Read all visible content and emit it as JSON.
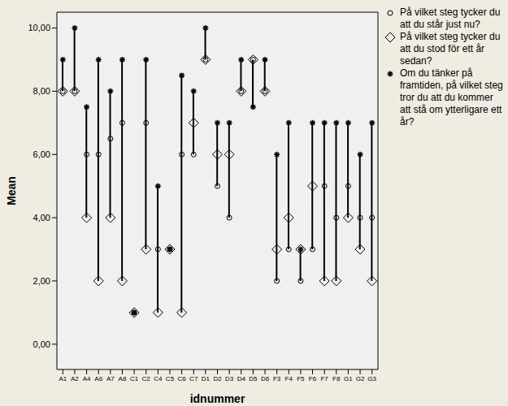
{
  "chart_data": {
    "type": "scatter",
    "x_label": "idnummer",
    "y_label": "Mean",
    "categories": [
      "A1",
      "A2",
      "A4",
      "A6",
      "A7",
      "A8",
      "C1",
      "C2",
      "C4",
      "C5",
      "C6",
      "C7",
      "D1",
      "D2",
      "D3",
      "D4",
      "D5",
      "D6",
      "F3",
      "F4",
      "F5",
      "F6",
      "F7",
      "F8",
      "G1",
      "G2",
      "G3"
    ],
    "ylim": [
      -0.8,
      10.5
    ],
    "yticks": [
      {
        "value": 0,
        "label": "0,00"
      },
      {
        "value": 2,
        "label": "2,00"
      },
      {
        "value": 4,
        "label": "4,00"
      },
      {
        "value": 6,
        "label": "6,00"
      },
      {
        "value": 8,
        "label": "8,00"
      },
      {
        "value": 10,
        "label": "10,00"
      }
    ],
    "series": [
      {
        "name": "På vilket steg tycker du att du står just nu?",
        "color": "#000000",
        "marker": "circle",
        "values": [
          8,
          8,
          6,
          6,
          6.5,
          7,
          1,
          7,
          3,
          3,
          6,
          6,
          9,
          5,
          4,
          8,
          9,
          8,
          2,
          3,
          2,
          3,
          5,
          4,
          5,
          4,
          4
        ]
      },
      {
        "name": "På vilket steg tycker du att du stod för ett år sedan?",
        "color": "#000000",
        "marker": "diamond",
        "values": [
          8,
          8,
          4,
          2,
          4,
          2,
          1,
          3,
          1,
          3,
          1,
          7,
          9,
          6,
          6,
          8,
          9,
          8,
          3,
          4,
          3,
          5,
          2,
          2,
          4,
          3,
          2
        ]
      },
      {
        "name": "Om du tänker på framtiden, på vilket steg tror du att du kommer att stå om ytterligare ett år?",
        "color": "#000000",
        "marker": "star",
        "values": [
          9,
          10,
          7.5,
          9,
          8,
          9,
          1,
          9,
          5,
          3,
          8.5,
          8,
          10,
          7,
          7,
          9,
          7.5,
          9,
          6,
          7,
          3,
          7,
          7,
          7,
          7,
          6,
          7
        ]
      }
    ]
  }
}
